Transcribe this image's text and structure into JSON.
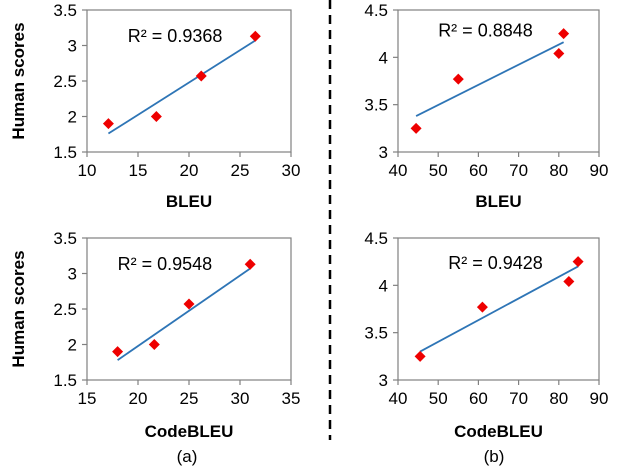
{
  "colors": {
    "marker": "#ee0000",
    "fit_line": "#2e75b6",
    "axis": "#808080",
    "divider": "#000000"
  },
  "chart_data": [
    {
      "type": "scatter",
      "panel": "top-left",
      "xlabel": "BLEU",
      "ylabel": "Human scores",
      "xlim": [
        10,
        30
      ],
      "ylim": [
        1.5,
        3.5
      ],
      "xticks": [
        "10",
        "15",
        "20",
        "25",
        "30"
      ],
      "yticks": [
        "1.5",
        "2",
        "2.5",
        "3",
        "3.5"
      ],
      "points": [
        [
          12.1,
          1.9
        ],
        [
          16.8,
          2.0
        ],
        [
          21.2,
          2.57
        ],
        [
          26.5,
          3.13
        ]
      ],
      "fit": [
        [
          12.1,
          1.76
        ],
        [
          26.5,
          3.07
        ]
      ],
      "annotation": "R² = 0.9368",
      "annotation_pos": [
        0.2,
        3.05
      ]
    },
    {
      "type": "scatter",
      "panel": "top-right",
      "xlabel": "BLEU",
      "ylabel": "",
      "xlim": [
        40,
        90
      ],
      "ylim": [
        3,
        4.5
      ],
      "xticks": [
        "40",
        "50",
        "60",
        "70",
        "80",
        "90"
      ],
      "yticks": [
        "3",
        "3.5",
        "4",
        "4.5"
      ],
      "points": [
        [
          44.5,
          3.25
        ],
        [
          55,
          3.77
        ],
        [
          80,
          4.04
        ],
        [
          81.2,
          4.25
        ]
      ],
      "fit": [
        [
          44.5,
          3.38
        ],
        [
          81.2,
          4.16
        ]
      ],
      "annotation": "R² = 0.8848",
      "annotation_pos": [
        0.2,
        4.22
      ]
    },
    {
      "type": "scatter",
      "panel": "bottom-left",
      "xlabel": "CodeBLEU",
      "ylabel": "Human scores",
      "xlim": [
        15,
        35
      ],
      "ylim": [
        1.5,
        3.5
      ],
      "xticks": [
        "15",
        "20",
        "25",
        "30",
        "35"
      ],
      "yticks": [
        "1.5",
        "2",
        "2.5",
        "3",
        "3.5"
      ],
      "points": [
        [
          18,
          1.9
        ],
        [
          21.6,
          2.0
        ],
        [
          25,
          2.57
        ],
        [
          31,
          3.13
        ]
      ],
      "fit": [
        [
          18,
          1.78
        ],
        [
          31,
          3.07
        ]
      ],
      "annotation": "R² = 0.9548",
      "annotation_pos": [
        0.15,
        3.05
      ]
    },
    {
      "type": "scatter",
      "panel": "bottom-right",
      "xlabel": "CodeBLEU",
      "ylabel": "",
      "xlim": [
        40,
        90
      ],
      "ylim": [
        3,
        4.5
      ],
      "xticks": [
        "40",
        "50",
        "60",
        "70",
        "80",
        "90"
      ],
      "yticks": [
        "3",
        "3.5",
        "4",
        "4.5"
      ],
      "points": [
        [
          45.5,
          3.25
        ],
        [
          61,
          3.77
        ],
        [
          82.5,
          4.04
        ],
        [
          84.8,
          4.25
        ]
      ],
      "fit": [
        [
          45.5,
          3.3
        ],
        [
          84.8,
          4.2
        ]
      ],
      "annotation": "R² = 0.9428",
      "annotation_pos": [
        0.25,
        4.17
      ]
    }
  ],
  "captions": [
    "(a)",
    "(b)"
  ]
}
